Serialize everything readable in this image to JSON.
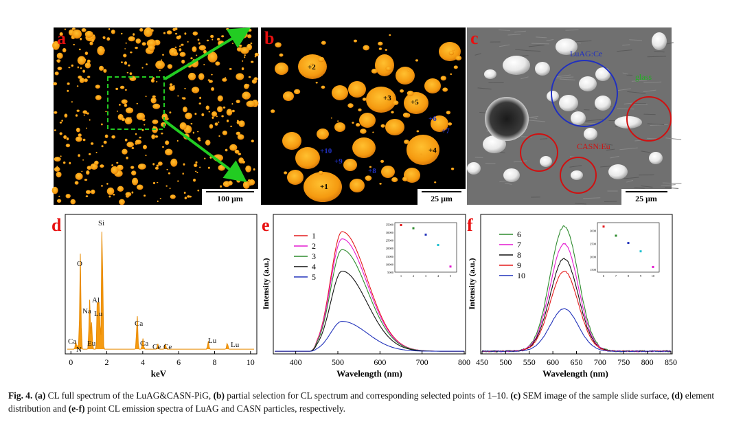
{
  "panels": {
    "a": {
      "letter": "a",
      "scale": "100 μm"
    },
    "b": {
      "letter": "b",
      "scale": "25 μm",
      "points": [
        "+1",
        "+2",
        "+3",
        "+4",
        "+5",
        "+6",
        "+7",
        "+8",
        "+9",
        "+10"
      ]
    },
    "c": {
      "letter": "c",
      "scale": "25 μm",
      "labels": {
        "luag": "LuAG:Ce",
        "glass": "glass",
        "casn": "CASN:Eu"
      }
    },
    "d": {
      "letter": "d"
    },
    "e": {
      "letter": "e"
    },
    "f": {
      "letter": "f"
    }
  },
  "chart_data": [
    {
      "panel": "d",
      "type": "line",
      "xlabel": "keV",
      "ylabel": "",
      "xlim": [
        -0.05,
        1.0
      ],
      "xticks": [
        "0",
        "2",
        "4",
        "6",
        "8",
        "10"
      ],
      "peaks": [
        {
          "x": 0.277,
          "y": 0.06,
          "label": "Ca"
        },
        {
          "x": 0.392,
          "y": 0.03,
          "label": "N"
        },
        {
          "x": 0.525,
          "y": 0.72,
          "label": "O"
        },
        {
          "x": 1.041,
          "y": 0.38,
          "label": "Na"
        },
        {
          "x": 1.154,
          "y": 0.2,
          "label": "Eu"
        },
        {
          "x": 1.486,
          "y": 0.45,
          "label": "Al"
        },
        {
          "x": 1.581,
          "y": 0.37,
          "label": "Lu"
        },
        {
          "x": 1.74,
          "y": 1.0,
          "label": "Si"
        },
        {
          "x": 3.69,
          "y": 0.26,
          "label": "Ca"
        },
        {
          "x": 4.01,
          "y": 0.08,
          "label": "Ca"
        },
        {
          "x": 4.84,
          "y": 0.04,
          "label": "Ce"
        },
        {
          "x": 5.26,
          "y": 0.04,
          "label": "Ce"
        },
        {
          "x": 7.65,
          "y": 0.06,
          "label": "Lu"
        },
        {
          "x": 8.71,
          "y": 0.05,
          "label": "Lu"
        }
      ]
    },
    {
      "panel": "e",
      "type": "line",
      "xlabel": "Wavelength (nm)",
      "ylabel": "Intensity (a.u.)",
      "xlim": [
        350,
        800
      ],
      "xticks": [
        "400",
        "500",
        "600",
        "700",
        "800"
      ],
      "series": [
        {
          "name": "1",
          "color": "#e41a1c",
          "peak": 1.0
        },
        {
          "name": "2",
          "color": "#e41ad0",
          "peak": 0.94
        },
        {
          "name": "3",
          "color": "#2e8b2e",
          "peak": 0.85
        },
        {
          "name": "4",
          "color": "#111111",
          "peak": 0.67
        },
        {
          "name": "5",
          "color": "#2233bb",
          "peak": 0.25
        }
      ],
      "inset": {
        "x": [
          1,
          2,
          3,
          4,
          5
        ],
        "y": [
          34500,
          32500,
          28500,
          22000,
          8500
        ],
        "ylim": [
          5000,
          36000
        ],
        "yticks": [
          "5000",
          "10000",
          "15000",
          "20000",
          "25000",
          "30000",
          "35000"
        ],
        "xticks": [
          "1",
          "2",
          "3",
          "4",
          "5"
        ],
        "colors": [
          "#e41a1c",
          "#2e8b2e",
          "#2233bb",
          "#20c0d0",
          "#e41ad0"
        ]
      }
    },
    {
      "panel": "f",
      "type": "line",
      "xlabel": "Wavelength (nm)",
      "ylabel": "Intensity (a.u.)",
      "xlim": [
        450,
        850
      ],
      "xticks": [
        "450",
        "500",
        "550",
        "600",
        "650",
        "700",
        "750",
        "800",
        "850"
      ],
      "series": [
        {
          "name": "6",
          "color": "#2e8b2e",
          "peak": 1.0
        },
        {
          "name": "7",
          "color": "#e41ad0",
          "peak": 0.86
        },
        {
          "name": "8",
          "color": "#111111",
          "peak": 0.74
        },
        {
          "name": "9",
          "color": "#e41a1c",
          "peak": 0.64
        },
        {
          "name": "10",
          "color": "#2233bb",
          "peak": 0.34
        }
      ],
      "inset": {
        "x": [
          6,
          7,
          8,
          9,
          10
        ],
        "y": [
          3150,
          2800,
          2520,
          2200,
          1600
        ],
        "ylim": [
          1400,
          3300
        ],
        "yticks": [
          "1500",
          "2000",
          "2500",
          "3000"
        ],
        "xticks": [
          "6",
          "7",
          "8",
          "9",
          "10"
        ],
        "colors": [
          "#e41a1c",
          "#2e8b2e",
          "#2233bb",
          "#20c0d0",
          "#e41ad0"
        ]
      }
    }
  ],
  "caption": {
    "fig": "Fig. 4.",
    "parts": [
      {
        "b": "(a)",
        "t": " CL full spectrum of the LuAG&CASN-PiG, "
      },
      {
        "b": "(b)",
        "t": " partial selection for CL spectrum and corresponding selected points of 1–10. "
      },
      {
        "b": "(c)",
        "t": " SEM image of the sample slide surface, "
      },
      {
        "b": "(d)",
        "t": " element distribution and "
      },
      {
        "b": "(e-f)",
        "t": " point CL emission spectra of LuAG and CASN particles, respectively."
      }
    ]
  }
}
